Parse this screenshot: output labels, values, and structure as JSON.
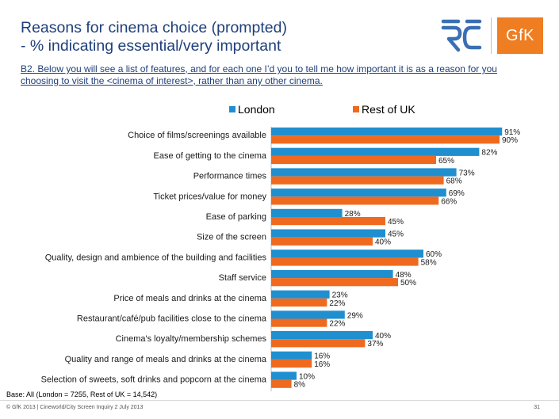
{
  "slide": {
    "title_line1": "Reasons for cinema choice (prompted)",
    "title_line2": "- % indicating essential/very important",
    "question": "B2. Below you will see a list of features, and for each one I’d you to tell me how important it is as a reason for you choosing to visit the <cinema of interest>, rather than any other cinema.",
    "logo_gfk": "GfK",
    "base_note": "Base: All (London = 7255, Rest of UK = 14,542)",
    "footer": "© GfK 2013 | Cineworld/City Screen Inquiry 2 July 2013",
    "page_number": "31"
  },
  "colors": {
    "london": "#1f8fd0",
    "rest_of_uk": "#ef6a1e",
    "title": "#1f3f7a",
    "logo_rc": "#3a6fb4",
    "logo_gfk": "#ef7d22"
  },
  "chart_data": {
    "type": "bar",
    "orientation": "horizontal",
    "title": "Reasons for cinema choice (prompted) - % indicating essential/very important",
    "xlabel": "",
    "ylabel": "",
    "xlim": [
      0,
      100
    ],
    "value_suffix": "%",
    "grid": false,
    "legend_position": "top",
    "categories": [
      "Choice of films/screenings available",
      "Ease of getting to the cinema",
      "Performance times",
      "Ticket prices/value for money",
      "Ease of parking",
      "Size of the screen",
      "Quality, design and ambience of the building and facilities",
      "Staff service",
      "Price of meals and drinks at the cinema",
      "Restaurant/café/pub facilities close to the cinema",
      "Cinema's loyalty/membership schemes",
      "Quality and range of meals and drinks at the cinema",
      "Selection of sweets, soft drinks and popcorn at the cinema"
    ],
    "series": [
      {
        "name": "London",
        "values": [
          91,
          82,
          73,
          69,
          28,
          45,
          60,
          48,
          23,
          29,
          40,
          16,
          10
        ]
      },
      {
        "name": "Rest of UK",
        "values": [
          90,
          65,
          68,
          66,
          45,
          40,
          58,
          50,
          22,
          22,
          37,
          16,
          8
        ]
      }
    ]
  }
}
